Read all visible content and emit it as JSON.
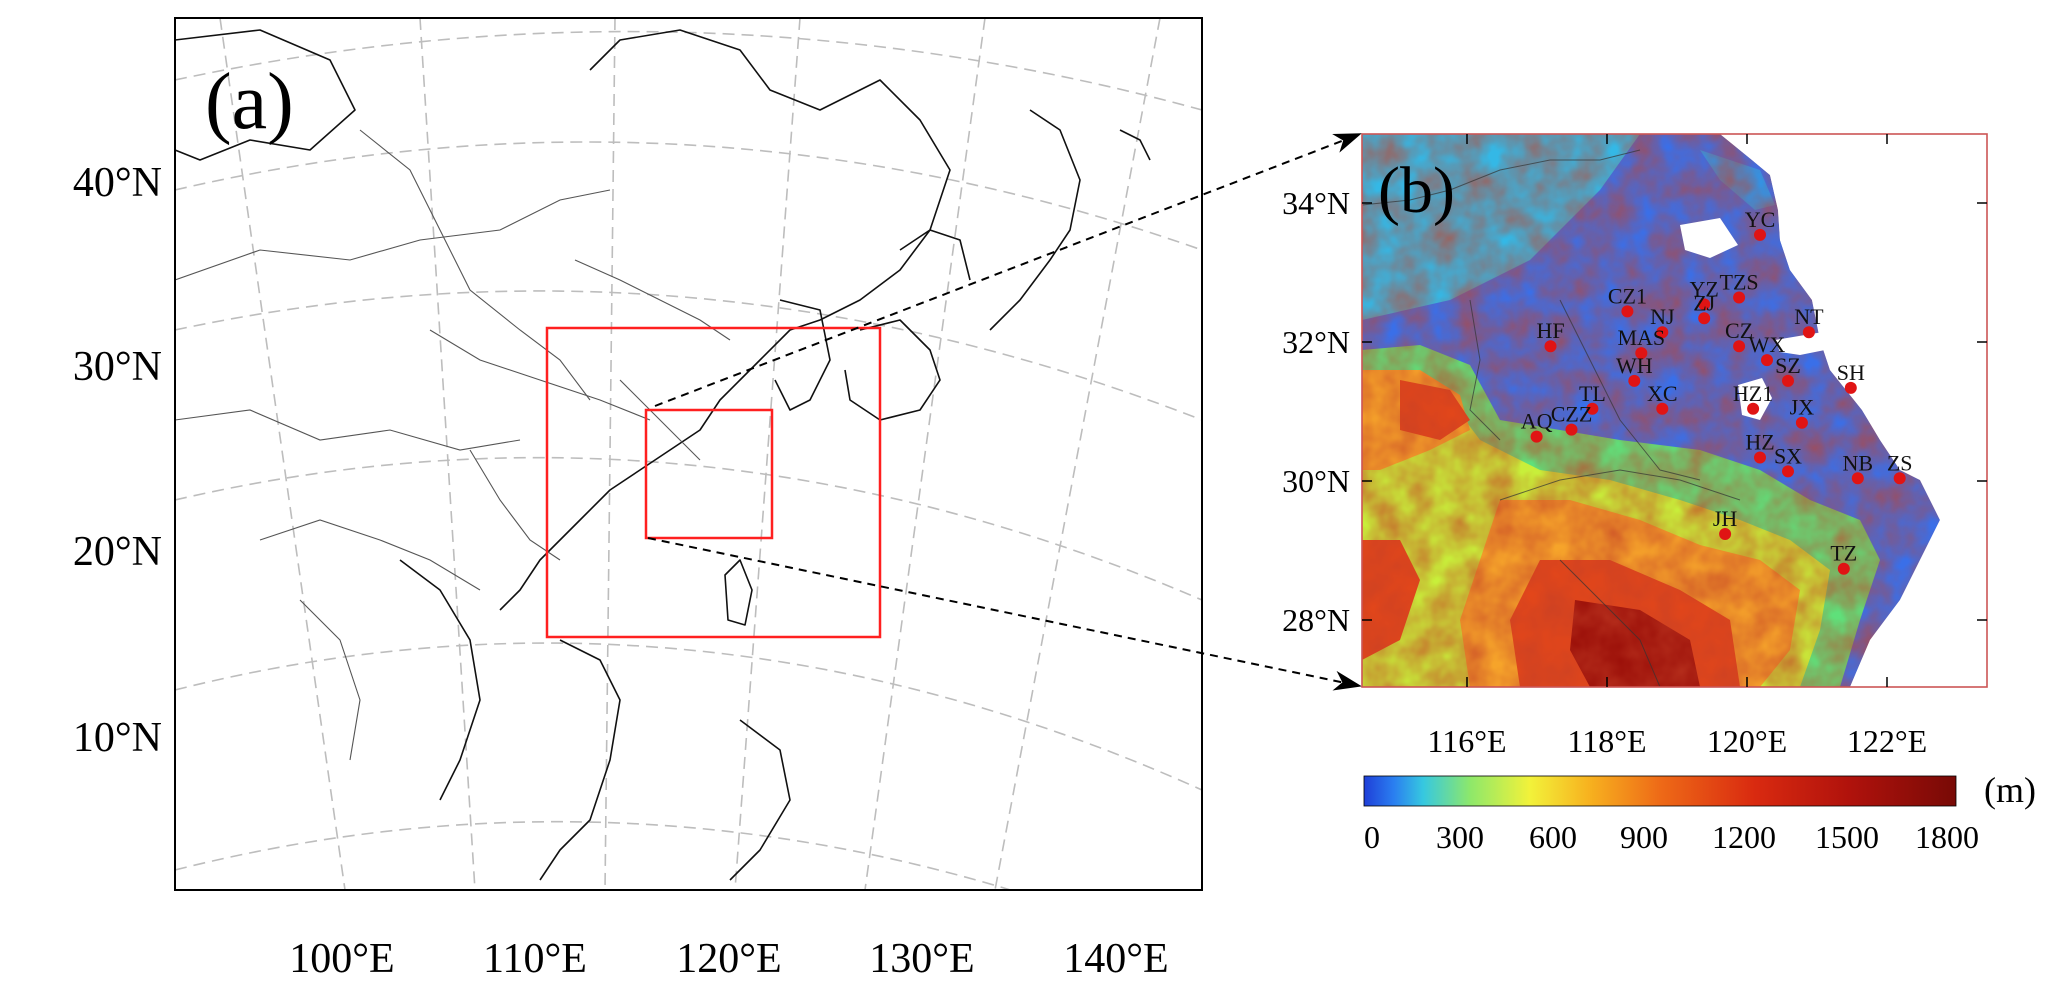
{
  "panel_a": {
    "label": "(a)",
    "lat_labels": [
      "40°N",
      "30°N",
      "20°N",
      "10°N"
    ],
    "lon_labels": [
      "100°E",
      "110°E",
      "120°E",
      "130°E",
      "140°E"
    ]
  },
  "panel_b": {
    "label": "(b)",
    "lat_labels": [
      "34°N",
      "32°N",
      "30°N",
      "28°N"
    ],
    "lon_labels": [
      "116°E",
      "118°E",
      "120°E",
      "122°E"
    ],
    "stations": [
      {
        "code": "YC",
        "lon": 120.2,
        "lat": 33.4
      },
      {
        "code": "TZS",
        "lon": 119.9,
        "lat": 32.5
      },
      {
        "code": "YZ",
        "lon": 119.4,
        "lat": 32.4
      },
      {
        "code": "ZJ",
        "lon": 119.4,
        "lat": 32.2
      },
      {
        "code": "CZ1",
        "lon": 118.3,
        "lat": 32.3
      },
      {
        "code": "NJ",
        "lon": 118.8,
        "lat": 32.0
      },
      {
        "code": "NT",
        "lon": 120.9,
        "lat": 32.0
      },
      {
        "code": "HF",
        "lon": 117.2,
        "lat": 31.8
      },
      {
        "code": "MAS",
        "lon": 118.5,
        "lat": 31.7
      },
      {
        "code": "CZ",
        "lon": 119.9,
        "lat": 31.8
      },
      {
        "code": "WX",
        "lon": 120.3,
        "lat": 31.6
      },
      {
        "code": "SZ",
        "lon": 120.6,
        "lat": 31.3
      },
      {
        "code": "WH",
        "lon": 118.4,
        "lat": 31.3
      },
      {
        "code": "SH",
        "lon": 121.5,
        "lat": 31.2
      },
      {
        "code": "TL",
        "lon": 117.8,
        "lat": 30.9
      },
      {
        "code": "XC",
        "lon": 118.8,
        "lat": 30.9
      },
      {
        "code": "HZ1",
        "lon": 120.1,
        "lat": 30.9
      },
      {
        "code": "JX",
        "lon": 120.8,
        "lat": 30.7
      },
      {
        "code": "AQ",
        "lon": 117.0,
        "lat": 30.5
      },
      {
        "code": "CZZ",
        "lon": 117.5,
        "lat": 30.6
      },
      {
        "code": "HZ",
        "lon": 120.2,
        "lat": 30.2
      },
      {
        "code": "SX",
        "lon": 120.6,
        "lat": 30.0
      },
      {
        "code": "NB",
        "lon": 121.6,
        "lat": 29.9
      },
      {
        "code": "ZS",
        "lon": 122.2,
        "lat": 29.9
      },
      {
        "code": "JH",
        "lon": 119.7,
        "lat": 29.1
      },
      {
        "code": "TZ",
        "lon": 121.4,
        "lat": 28.6
      }
    ]
  },
  "colorbar": {
    "unit": "(m)",
    "ticks": [
      "0",
      "300",
      "600",
      "900",
      "1200",
      "1500",
      "1800"
    ],
    "colors": [
      "#1f3fd8",
      "#2a7ef0",
      "#36c8e0",
      "#8ee86a",
      "#f2f23a",
      "#f7b21f",
      "#ee6a17",
      "#d92a10",
      "#b0120c",
      "#780a06"
    ]
  },
  "colors": {
    "domain_box": "#ff2020",
    "station_dot": "#e01414",
    "grid": "#bdbdbd"
  }
}
